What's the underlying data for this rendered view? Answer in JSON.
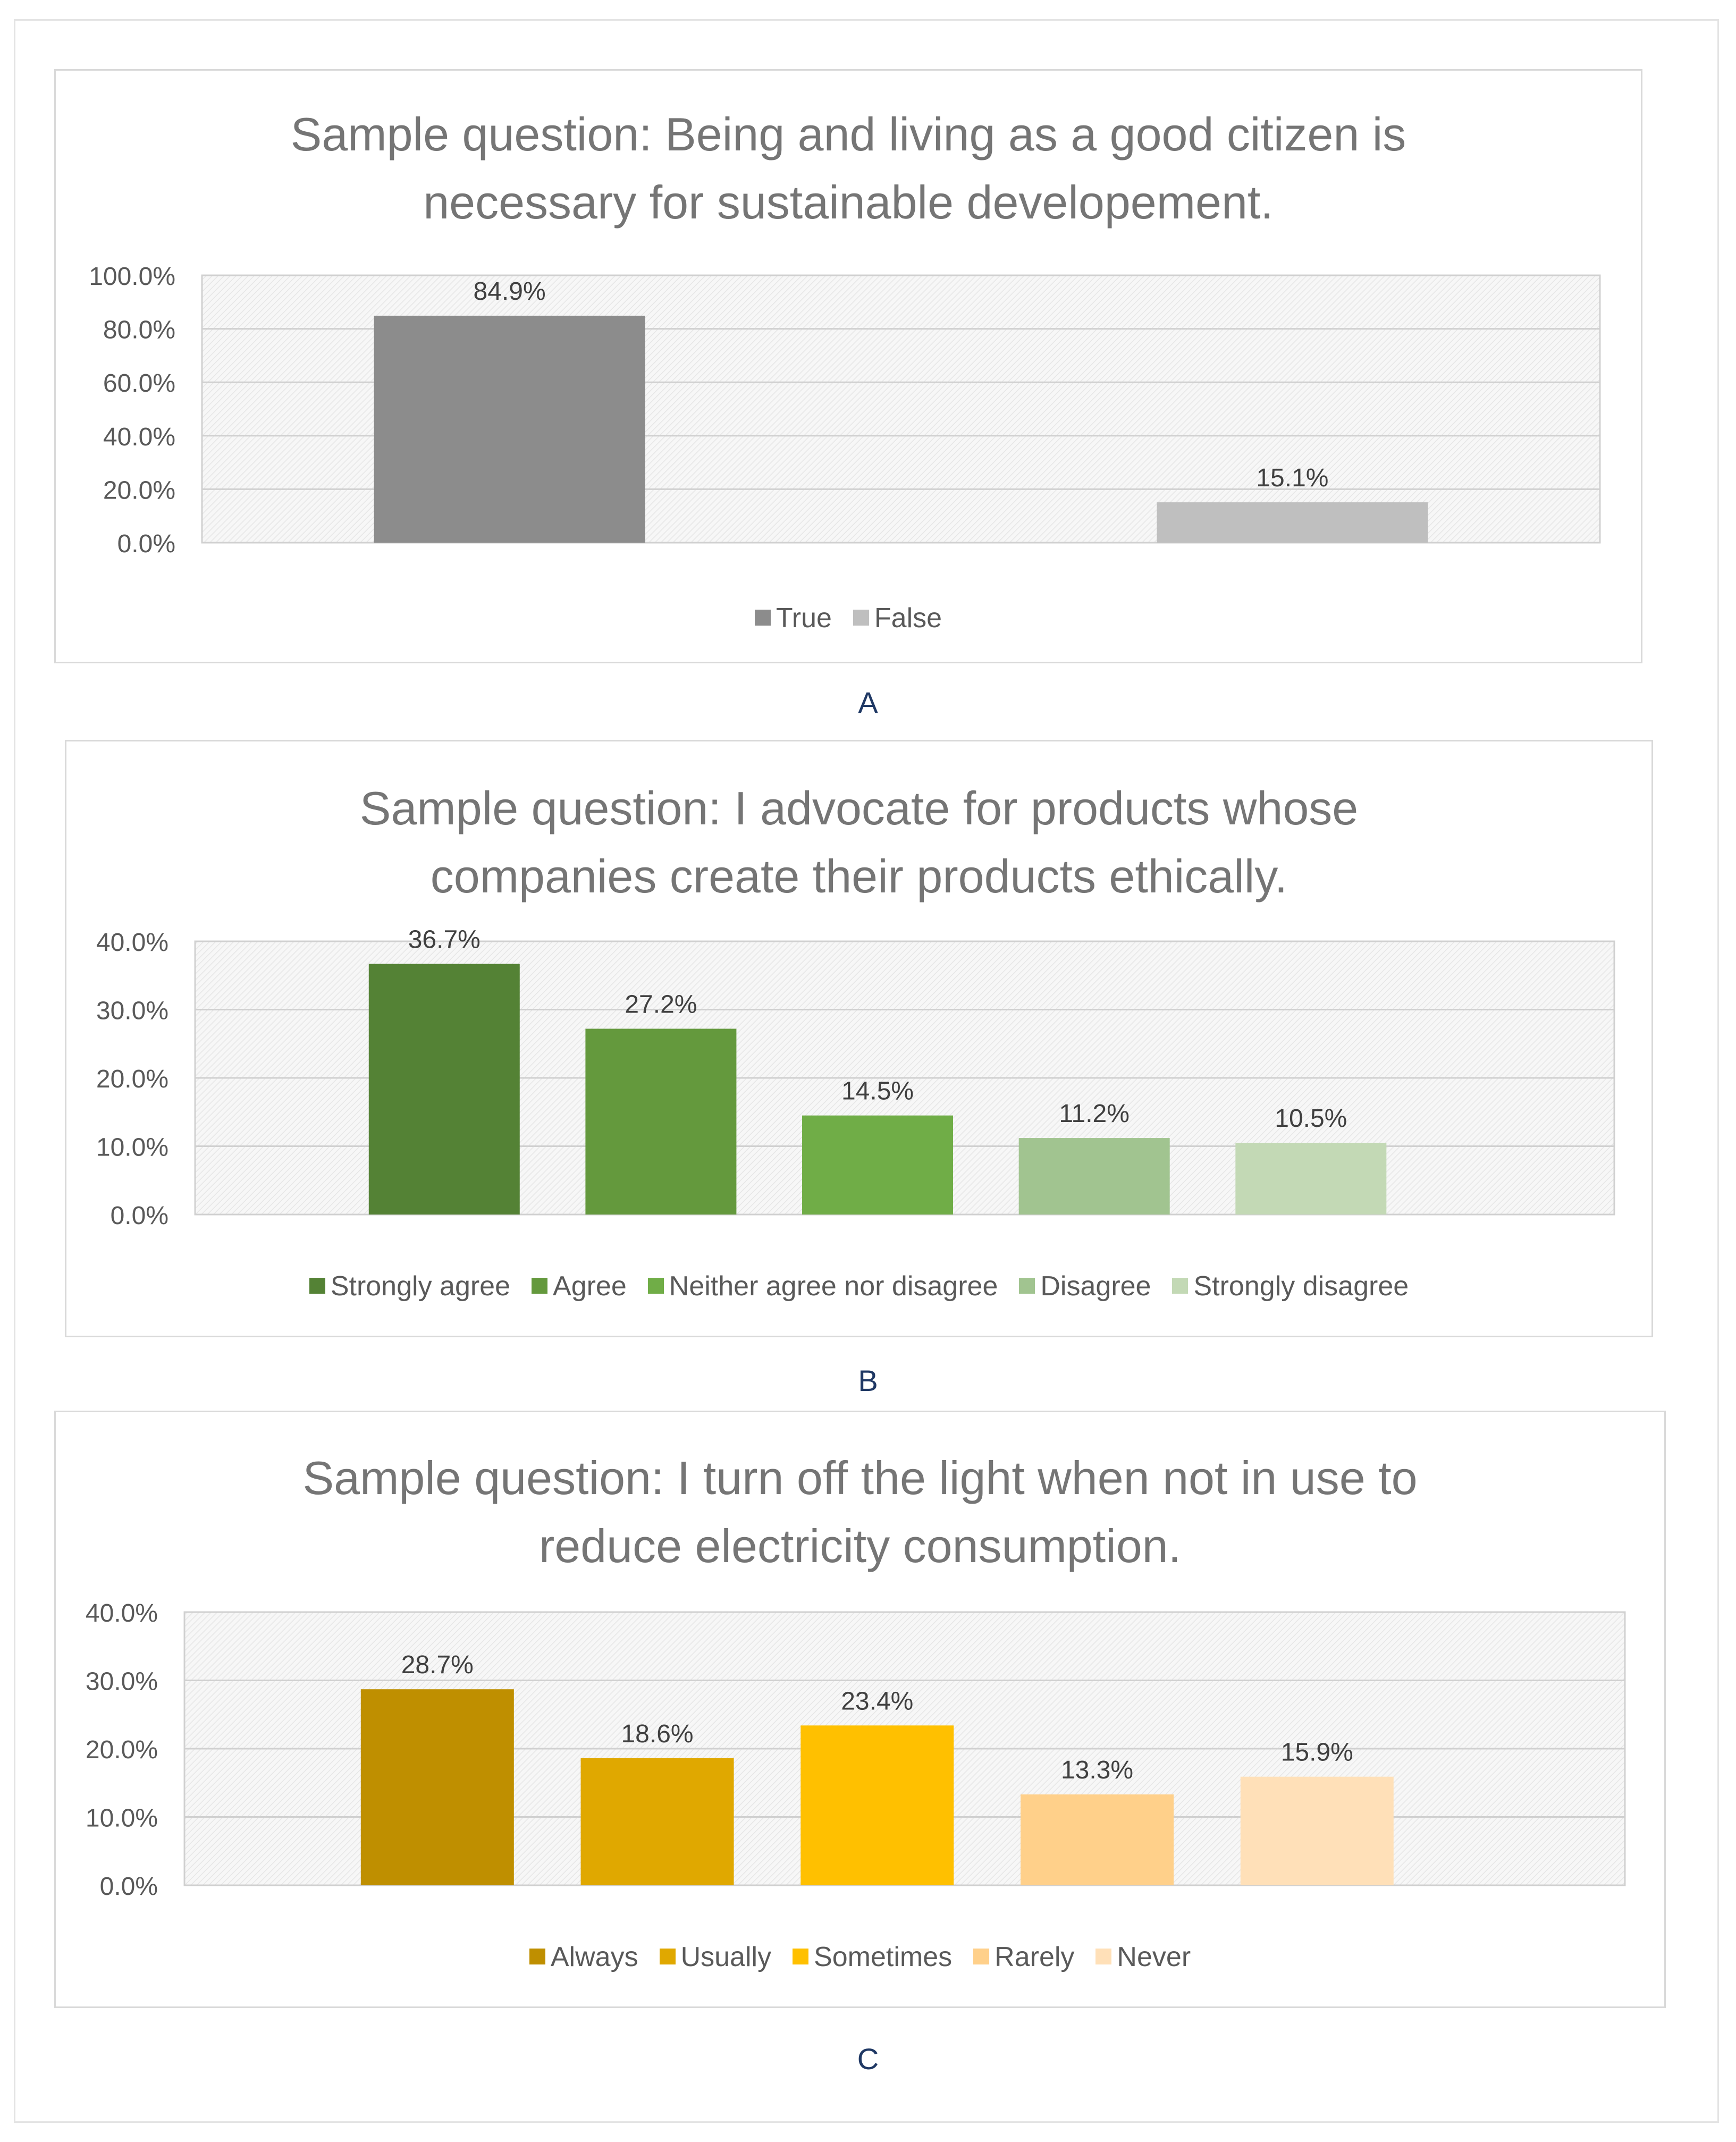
{
  "chart_data": [
    {
      "type": "bar",
      "panel": "A",
      "title": "Sample question: Being and living as a good citizen is necessary for sustainable developement.",
      "title_lines": [
        "Sample question: Being and living as a good citizen is",
        "necessary for sustainable developement."
      ],
      "categories": [
        "True",
        "False"
      ],
      "values": [
        84.9,
        15.1
      ],
      "data_labels": [
        "84.9%",
        "15.1%"
      ],
      "colors": [
        "#8c8c8c",
        "#bfbfbf"
      ],
      "ylim": [
        0,
        100
      ],
      "yticks": [
        "0.0%",
        "20.0%",
        "40.0%",
        "60.0%",
        "80.0%",
        "100.0%"
      ],
      "grid": true,
      "legend": "bottom"
    },
    {
      "type": "bar",
      "panel": "B",
      "title": "Sample question: I advocate for products whose companies create their products ethically.",
      "title_lines": [
        "Sample question: I advocate for products whose",
        "companies create their products ethically."
      ],
      "categories": [
        "Strongly agree",
        "Agree",
        "Neither agree nor disagree",
        "Disagree",
        "Strongly disagree"
      ],
      "values": [
        36.7,
        27.2,
        14.5,
        11.2,
        10.5
      ],
      "data_labels": [
        "36.7%",
        "27.2%",
        "14.5%",
        "11.2%",
        "10.5%"
      ],
      "colors": [
        "#548235",
        "#64993d",
        "#70ad47",
        "#a1c490",
        "#c3d9b5"
      ],
      "ylim": [
        0,
        40
      ],
      "yticks": [
        "0.0%",
        "10.0%",
        "20.0%",
        "30.0%",
        "40.0%"
      ],
      "grid": true,
      "legend": "bottom"
    },
    {
      "type": "bar",
      "panel": "C",
      "title": "Sample question: I turn off the light when not in use to reduce electricity consumption.",
      "title_lines": [
        "Sample question: I turn off the light when not in use to",
        "reduce electricity consumption."
      ],
      "categories": [
        "Always",
        "Usually",
        "Sometimes",
        "Rarely",
        "Never"
      ],
      "values": [
        28.7,
        18.6,
        23.4,
        13.3,
        15.9
      ],
      "data_labels": [
        "28.7%",
        "18.6%",
        "23.4%",
        "13.3%",
        "15.9%"
      ],
      "colors": [
        "#bf8f00",
        "#e0a800",
        "#ffc000",
        "#ffd08a",
        "#ffe0b8"
      ],
      "ylim": [
        0,
        40
      ],
      "yticks": [
        "0.0%",
        "10.0%",
        "20.0%",
        "30.0%",
        "40.0%"
      ],
      "grid": true,
      "legend": "bottom"
    }
  ],
  "panel_labels": [
    "A",
    "B",
    "C"
  ]
}
